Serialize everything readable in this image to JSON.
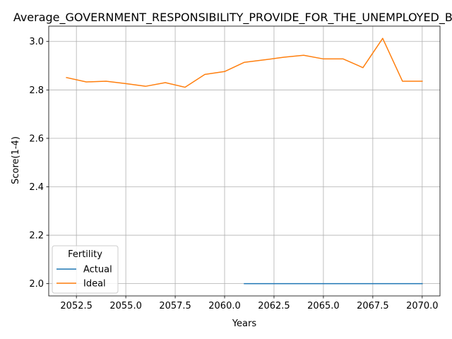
{
  "chart_data": {
    "type": "line",
    "title": "Average_GOVERNMENT_RESPONSIBILITY_PROVIDE_FOR_THE_UNEMPLOYED_Black",
    "xlabel": "Years",
    "ylabel": "Score(1-4)",
    "xlim": [
      2051.1,
      2070.9
    ],
    "ylim": [
      1.9494,
      3.0634
    ],
    "xticks": [
      2052.5,
      2055.0,
      2057.5,
      2060.0,
      2062.5,
      2065.0,
      2067.5,
      2070.0
    ],
    "xtick_labels": [
      "2052.5",
      "2055.0",
      "2057.5",
      "2060.0",
      "2062.5",
      "2065.0",
      "2067.5",
      "2070.0"
    ],
    "yticks": [
      2.0,
      2.2,
      2.4,
      2.6,
      2.8,
      3.0
    ],
    "ytick_labels": [
      "2.0",
      "2.2",
      "2.4",
      "2.6",
      "2.8",
      "3.0"
    ],
    "grid": true,
    "legend": {
      "title": "Fertility",
      "placement": "lower-left"
    },
    "series": [
      {
        "name": "Actual",
        "color": "#1f77b4",
        "x": [
          2061,
          2062,
          2063,
          2064,
          2065,
          2066,
          2067,
          2068,
          2069,
          2070
        ],
        "y": [
          2.0,
          2.0,
          2.0,
          2.0,
          2.0,
          2.0,
          2.0,
          2.0,
          2.0,
          2.0
        ]
      },
      {
        "name": "Ideal",
        "color": "#ff7f0e",
        "x": [
          2052,
          2053,
          2054,
          2055,
          2056,
          2057,
          2058,
          2059,
          2060,
          2061,
          2062,
          2063,
          2064,
          2065,
          2066,
          2067,
          2068,
          2069,
          2070
        ],
        "y": [
          2.851,
          2.833,
          2.836,
          2.826,
          2.815,
          2.83,
          2.811,
          2.864,
          2.876,
          2.914,
          2.924,
          2.935,
          2.943,
          2.928,
          2.928,
          2.892,
          3.013,
          2.836,
          2.836
        ]
      }
    ]
  }
}
